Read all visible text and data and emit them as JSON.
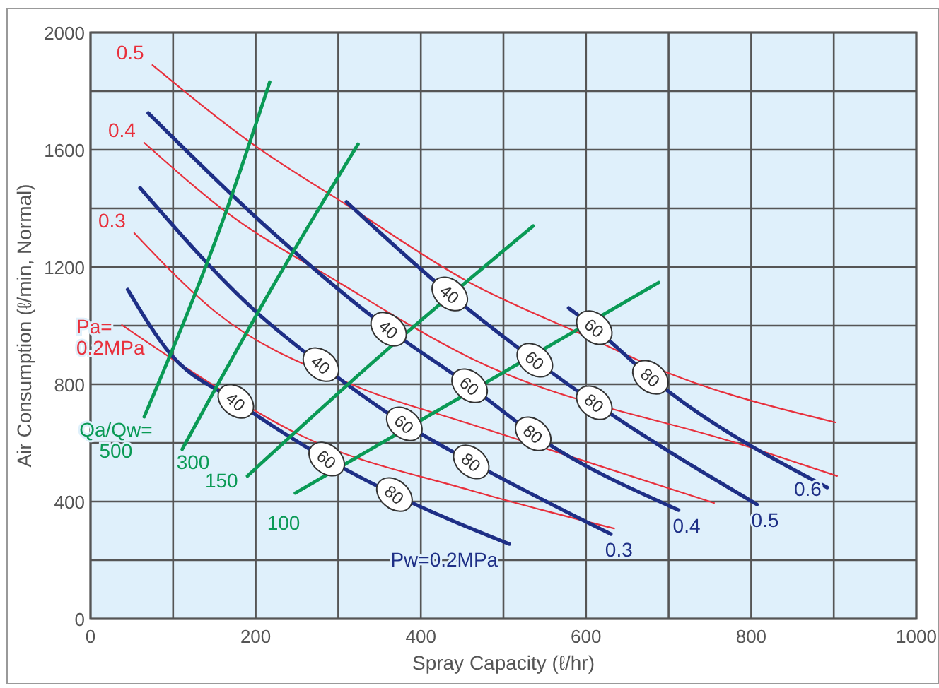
{
  "chart_data": {
    "type": "line",
    "xlabel": "Spray Capacity (ℓ/hr)",
    "ylabel": "Air Consumption (ℓ/min, Normal)",
    "xlim": [
      0,
      1000
    ],
    "ylim": [
      0,
      2000
    ],
    "xticks": [
      0,
      {
        "value": 100,
        "label": null
      },
      200,
      {
        "value": 300,
        "label": null
      },
      400,
      {
        "value": 500,
        "label": null
      },
      600,
      {
        "value": 700,
        "label": null
      },
      800,
      {
        "value": 900,
        "label": null
      },
      1000
    ],
    "yticks": [
      0,
      {
        "value": 200,
        "label": null
      },
      400,
      {
        "value": 600,
        "label": null
      },
      800,
      {
        "value": 1000,
        "label": null
      },
      1200,
      {
        "value": 1400,
        "label": null
      },
      1600,
      {
        "value": 1800,
        "label": null
      },
      2000
    ],
    "grid": true,
    "line_style": "solid",
    "series": [
      {
        "name": "0.5",
        "color": "#e8303c",
        "x": [
          75,
          199,
          310,
          459,
          596,
          699,
          902
        ],
        "values": [
          1889,
          1614,
          1412,
          1147,
          969,
          839,
          670
        ]
      },
      {
        "name": "0.4",
        "color": "#e8303c",
        "x": [
          65,
          164,
          301,
          459,
          801,
          904
        ],
        "values": [
          1624,
          1388,
          1147,
          891,
          583,
          487
        ]
      },
      {
        "name": "0.3",
        "color": "#e8303c",
        "x": [
          53,
          150,
          320,
          459,
          755
        ],
        "values": [
          1316,
          1050,
          795,
          665,
          395
        ]
      },
      {
        "name": "Pa=\n0.2MPa",
        "color": "#e8303c",
        "x": [
          38,
          130,
          255,
          459,
          634
        ],
        "values": [
          1002,
          830,
          625,
          439,
          308
        ]
      },
      {
        "name": "Pw=0.2MPa",
        "color": "#1e2f86",
        "x": [
          45,
          96,
          176,
          286,
          368,
          507
        ],
        "values": [
          1123,
          906,
          742,
          545,
          424,
          255
        ]
      },
      {
        "name": "0.3",
        "color": "#1e2f86",
        "x": [
          60,
          199,
          279,
          380,
          461,
          630
        ],
        "values": [
          1470,
          1051,
          867,
          665,
          535,
          289
        ]
      },
      {
        "name": "0.4",
        "color": "#1e2f86",
        "x": [
          70,
          199,
          361,
          459,
          536,
          712
        ],
        "values": [
          1725,
          1373,
          988,
          795,
          631,
          371
        ]
      },
      {
        "name": "0.5",
        "color": "#1e2f86",
        "x": [
          310,
          435,
          538,
          610,
          807
        ],
        "values": [
          1422,
          1108,
          882,
          737,
          390
        ]
      },
      {
        "name": "0.6",
        "color": "#1e2f86",
        "x": [
          579,
          610,
          678,
          892
        ],
        "values": [
          1060,
          993,
          824,
          448
        ]
      },
      {
        "name": "Qa/Qw=\n500",
        "color": "#0a9a55",
        "x": [
          65,
          164,
          217
        ],
        "values": [
          689,
          1388,
          1831
        ]
      },
      {
        "name": "300",
        "color": "#0a9a55",
        "x": [
          111,
          220,
          324
        ],
        "values": [
          578,
          1130,
          1619
        ]
      },
      {
        "name": "150",
        "color": "#0a9a55",
        "x": [
          190,
          360,
          536
        ],
        "values": [
          487,
          920,
          1340
        ]
      },
      {
        "name": "100",
        "color": "#0a9a55",
        "x": [
          248,
          420,
          688
        ],
        "values": [
          429,
          710,
          1147
        ]
      }
    ],
    "annotations": [
      {
        "text": "40",
        "x": 176,
        "y": 742
      },
      {
        "text": "60",
        "x": 286,
        "y": 545
      },
      {
        "text": "80",
        "x": 368,
        "y": 424
      },
      {
        "text": "40",
        "x": 279,
        "y": 867
      },
      {
        "text": "60",
        "x": 380,
        "y": 665
      },
      {
        "text": "80",
        "x": 461,
        "y": 535
      },
      {
        "text": "40",
        "x": 361,
        "y": 988
      },
      {
        "text": "60",
        "x": 459,
        "y": 795
      },
      {
        "text": "80",
        "x": 536,
        "y": 631
      },
      {
        "text": "40",
        "x": 435,
        "y": 1108
      },
      {
        "text": "60",
        "x": 538,
        "y": 882
      },
      {
        "text": "80",
        "x": 610,
        "y": 737
      },
      {
        "text": "60",
        "x": 610,
        "y": 993
      },
      {
        "text": "80",
        "x": 678,
        "y": 824
      }
    ]
  }
}
